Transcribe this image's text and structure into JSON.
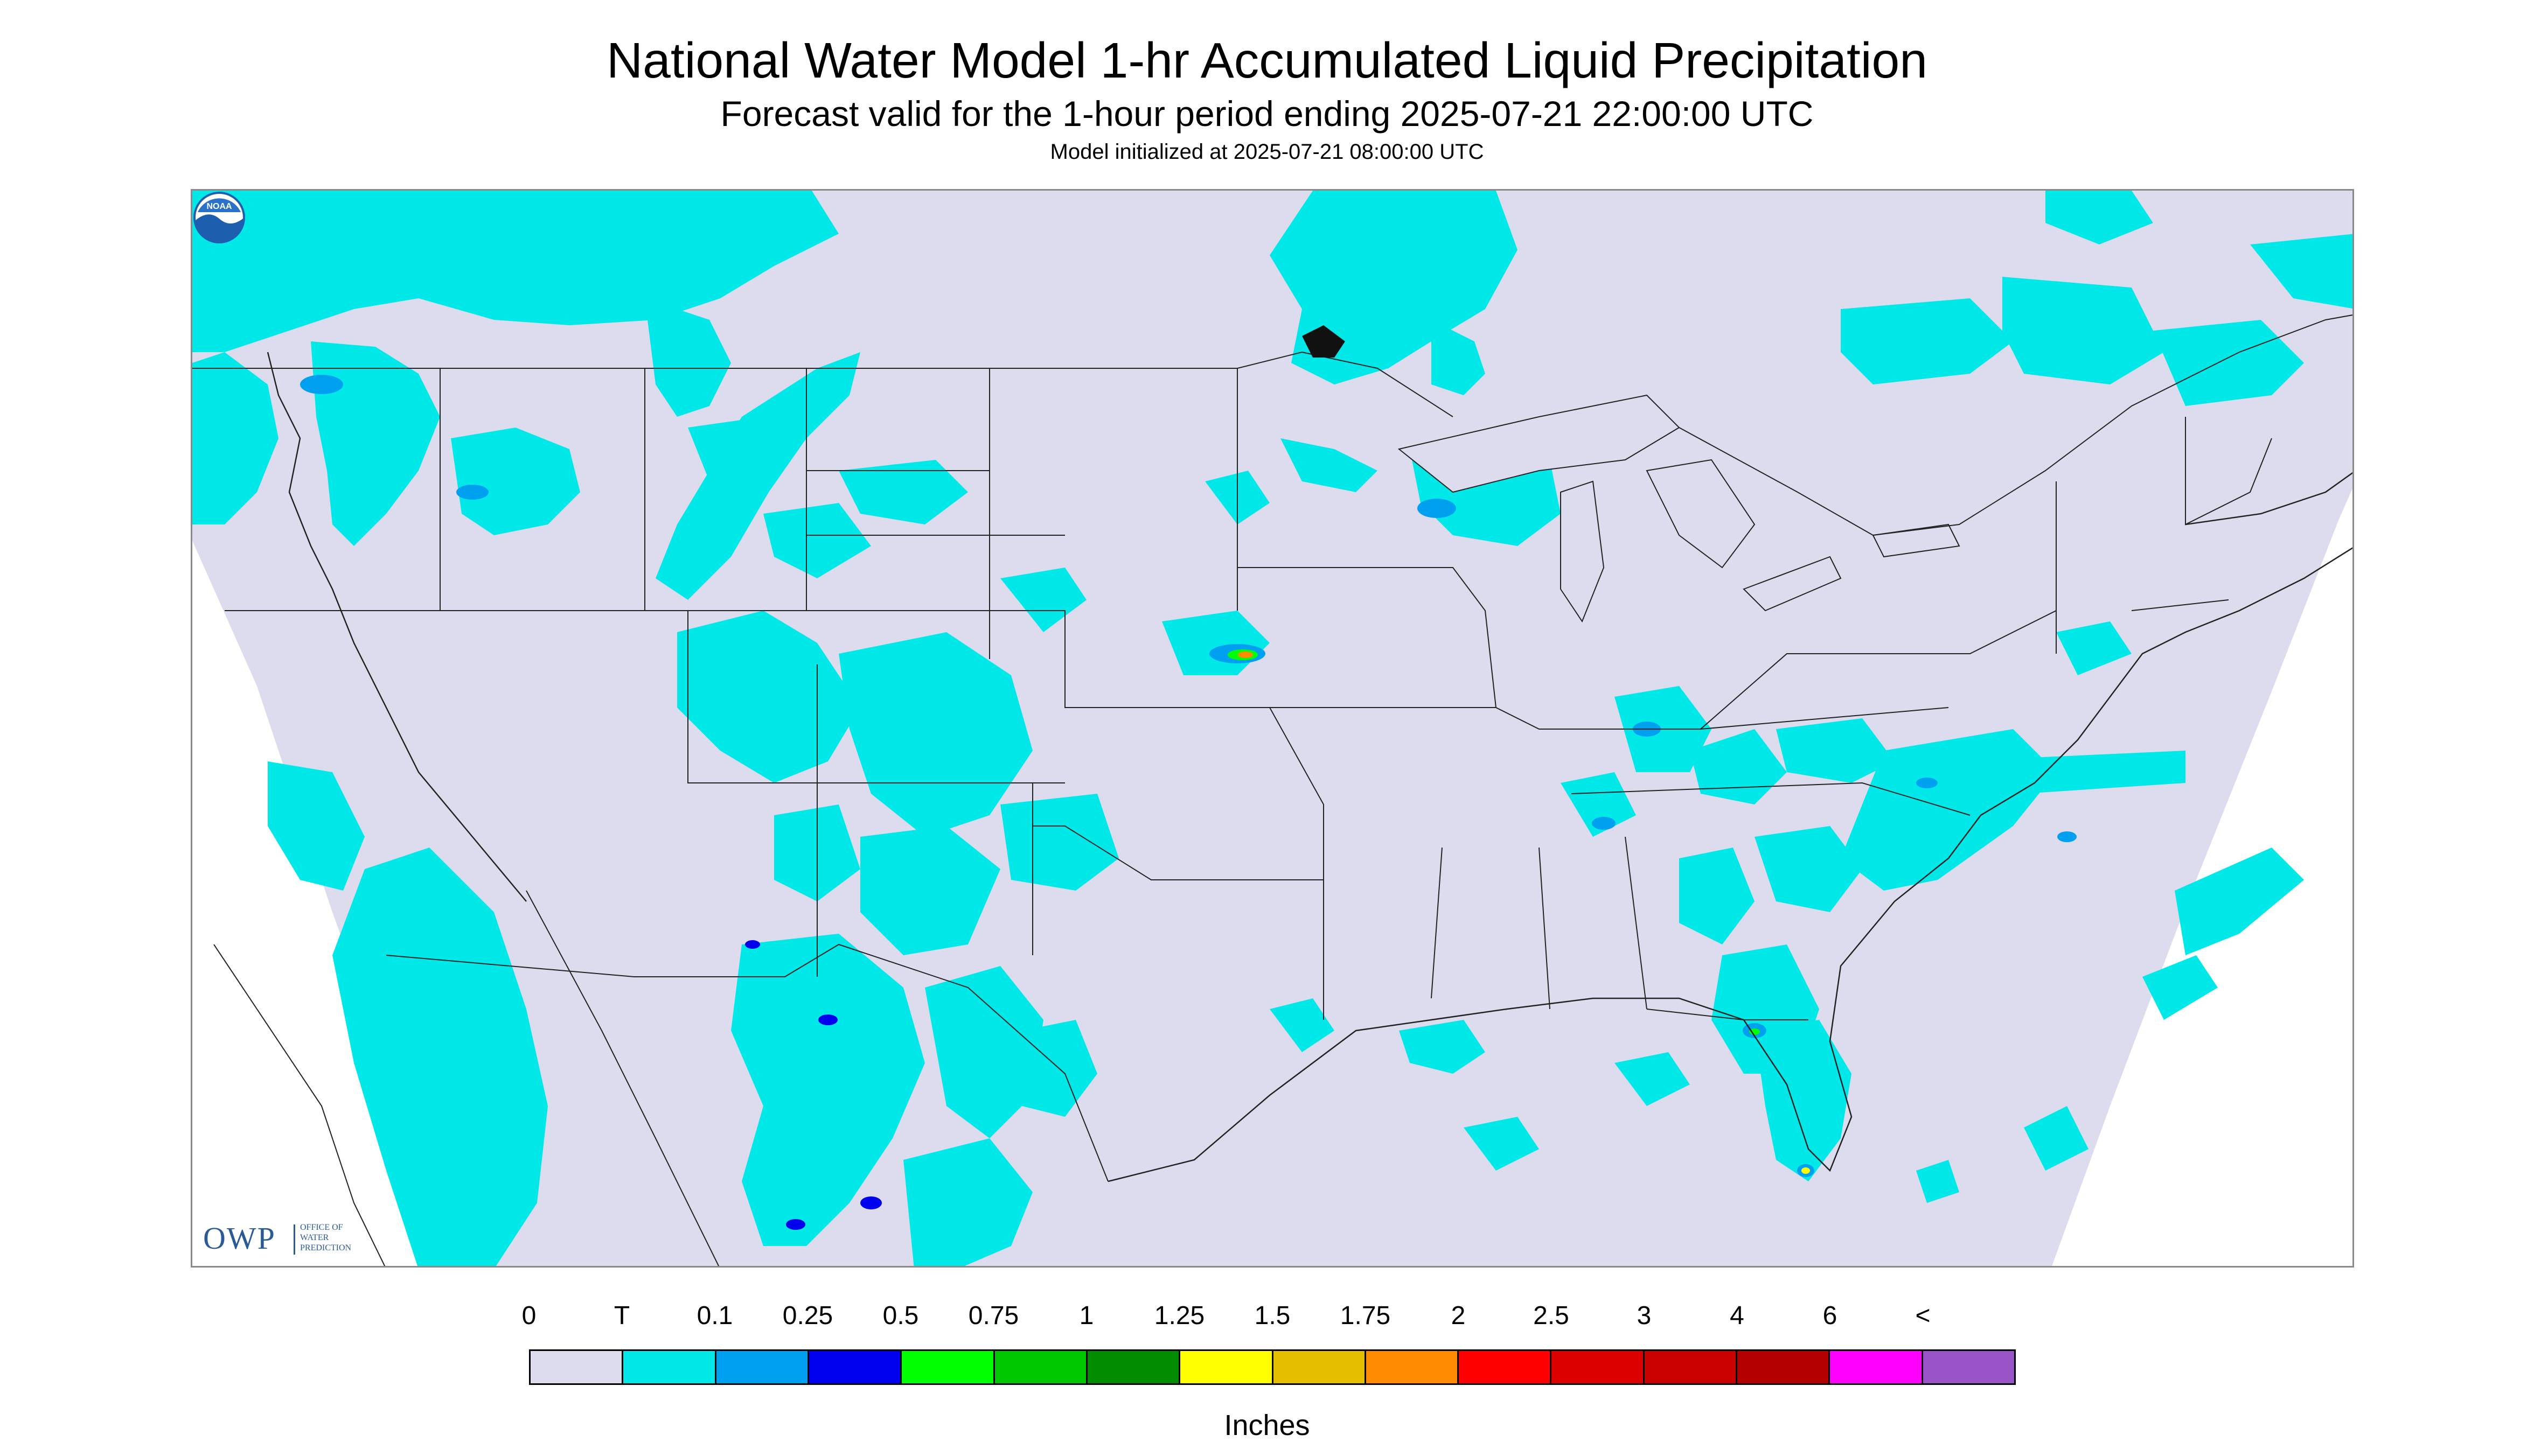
{
  "header": {
    "title": "National Water Model 1-hr Accumulated Liquid Precipitation",
    "subtitle": "Forecast valid for the 1-hour period ending 2025-07-21 22:00:00 UTC",
    "init_line": "Model initialized at 2025-07-21 08:00:00 UTC"
  },
  "map": {
    "background_color": "#dcdcee",
    "outside_color": "#ffffff",
    "boundary_color": "#222222",
    "precip_colors": {
      "trace": "#00e8e8",
      "light": "#00a0f0",
      "moderate": "#0000ee",
      "heavy_green": "#00ff00",
      "heavy_orange": "#ff8c00",
      "yellow": "#ffff00"
    }
  },
  "logos": {
    "owp_mark": "OWP",
    "owp_text_1": "OFFICE OF",
    "owp_text_2": "WATER",
    "owp_text_3": "PREDICTION",
    "noaa_text": "NOAA"
  },
  "legend": {
    "labels": [
      "0",
      "T",
      "0.1",
      "0.25",
      "0.5",
      "0.75",
      "1",
      "1.25",
      "1.5",
      "1.75",
      "2",
      "2.5",
      "3",
      "4",
      "6",
      "<"
    ],
    "colors": [
      "#dcdcee",
      "#00e8e8",
      "#00a0f0",
      "#0000ee",
      "#00ff00",
      "#00c800",
      "#008c00",
      "#ffff00",
      "#e6be00",
      "#ff8c00",
      "#ff0000",
      "#dc0000",
      "#c80000",
      "#b40000",
      "#ff00ff",
      "#9955c8"
    ],
    "units": "Inches"
  }
}
